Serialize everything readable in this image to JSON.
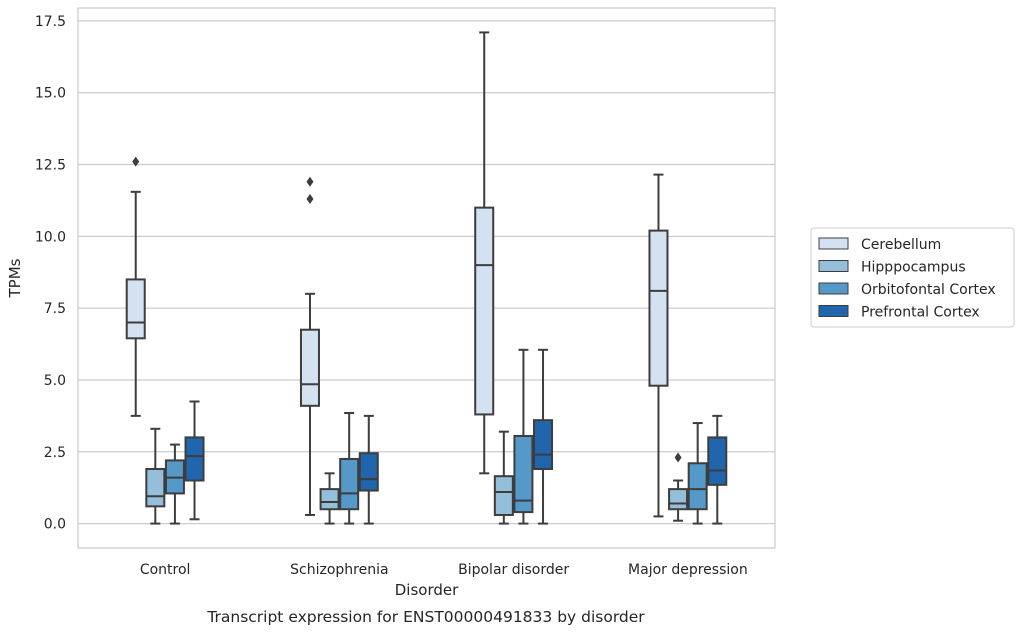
{
  "chart_data": {
    "type": "box",
    "title": "",
    "caption": "Transcript expression for ENST00000491833 by disorder",
    "xlabel": "Disorder",
    "ylabel": "TPMs",
    "ylim": [
      -0.85,
      17.95
    ],
    "yticks": [
      "0.0",
      "2.5",
      "5.0",
      "7.5",
      "10.0",
      "12.5",
      "15.0",
      "17.5"
    ],
    "grid": "horizontal",
    "legend_position": "right",
    "categories": [
      "Control",
      "Schizophrenia",
      "Bipolar disorder",
      "Major depression"
    ],
    "series": [
      {
        "name": "Cerebellum",
        "color": "#d3e1f0",
        "boxes": [
          {
            "whisker_low": 3.75,
            "q1": 6.45,
            "median": 7.0,
            "q3": 8.5,
            "whisker_high": 11.55,
            "outliers": [
              12.6
            ]
          },
          {
            "whisker_low": 0.3,
            "q1": 4.1,
            "median": 4.85,
            "q3": 6.75,
            "whisker_high": 8.0,
            "outliers": [
              11.3,
              11.9
            ]
          },
          {
            "whisker_low": 1.75,
            "q1": 3.8,
            "median": 9.0,
            "q3": 11.0,
            "whisker_high": 17.1,
            "outliers": []
          },
          {
            "whisker_low": 0.25,
            "q1": 4.8,
            "median": 8.1,
            "q3": 10.2,
            "whisker_high": 12.15,
            "outliers": []
          }
        ]
      },
      {
        "name": "Hipppocampus",
        "color": "#94bed9",
        "boxes": [
          {
            "whisker_low": 0.0,
            "q1": 0.6,
            "median": 0.95,
            "q3": 1.9,
            "whisker_high": 3.3,
            "outliers": []
          },
          {
            "whisker_low": 0.0,
            "q1": 0.5,
            "median": 0.75,
            "q3": 1.2,
            "whisker_high": 1.75,
            "outliers": []
          },
          {
            "whisker_low": 0.0,
            "q1": 0.3,
            "median": 1.1,
            "q3": 1.65,
            "whisker_high": 3.2,
            "outliers": []
          },
          {
            "whisker_low": 0.1,
            "q1": 0.5,
            "median": 0.7,
            "q3": 1.2,
            "whisker_high": 1.5,
            "outliers": [
              2.3
            ]
          }
        ]
      },
      {
        "name": "Orbitofontal Cortex",
        "color": "#5499c7",
        "boxes": [
          {
            "whisker_low": 0.0,
            "q1": 1.05,
            "median": 1.6,
            "q3": 2.2,
            "whisker_high": 2.75,
            "outliers": []
          },
          {
            "whisker_low": 0.0,
            "q1": 0.5,
            "median": 1.05,
            "q3": 2.25,
            "whisker_high": 3.85,
            "outliers": []
          },
          {
            "whisker_low": 0.0,
            "q1": 0.4,
            "median": 0.8,
            "q3": 3.05,
            "whisker_high": 6.05,
            "outliers": []
          },
          {
            "whisker_low": 0.0,
            "q1": 0.5,
            "median": 1.2,
            "q3": 2.1,
            "whisker_high": 3.5,
            "outliers": []
          }
        ]
      },
      {
        "name": "Prefrontal Cortex",
        "color": "#2166ac",
        "boxes": [
          {
            "whisker_low": 0.15,
            "q1": 1.5,
            "median": 2.35,
            "q3": 3.0,
            "whisker_high": 4.25,
            "outliers": []
          },
          {
            "whisker_low": 0.0,
            "q1": 1.15,
            "median": 1.55,
            "q3": 2.45,
            "whisker_high": 3.75,
            "outliers": []
          },
          {
            "whisker_low": 0.0,
            "q1": 1.9,
            "median": 2.4,
            "q3": 3.6,
            "whisker_high": 6.05,
            "outliers": []
          },
          {
            "whisker_low": 0.0,
            "q1": 1.35,
            "median": 1.85,
            "q3": 3.0,
            "whisker_high": 3.75,
            "outliers": []
          }
        ]
      }
    ]
  }
}
